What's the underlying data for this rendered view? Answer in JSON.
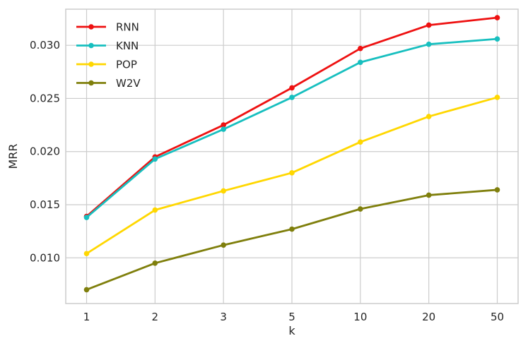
{
  "chart_data": {
    "type": "line",
    "title": "",
    "xlabel": "k",
    "ylabel": "MRR",
    "categories": [
      "1",
      "2",
      "3",
      "5",
      "10",
      "20",
      "50"
    ],
    "ylim": [
      0.0057,
      0.0334
    ],
    "yticks": [
      0.01,
      0.015,
      0.02,
      0.025,
      0.03
    ],
    "ytick_labels": [
      "0.010",
      "0.015",
      "0.020",
      "0.025",
      "0.030"
    ],
    "grid": true,
    "legend_position": "top-left",
    "series": [
      {
        "name": "RNN",
        "color": "#ee1111",
        "values": [
          0.0139,
          0.0195,
          0.0225,
          0.026,
          0.0297,
          0.0319,
          0.0326
        ]
      },
      {
        "name": "KNN",
        "color": "#17bfbf",
        "values": [
          0.0138,
          0.0193,
          0.0221,
          0.0251,
          0.0284,
          0.0301,
          0.0306
        ]
      },
      {
        "name": "POP",
        "color": "#ffd700",
        "values": [
          0.0104,
          0.0145,
          0.0163,
          0.018,
          0.0209,
          0.0233,
          0.0251
        ]
      },
      {
        "name": "W2V",
        "color": "#7f7f0c",
        "values": [
          0.007,
          0.0095,
          0.0112,
          0.0127,
          0.0146,
          0.0159,
          0.0164
        ]
      }
    ]
  }
}
